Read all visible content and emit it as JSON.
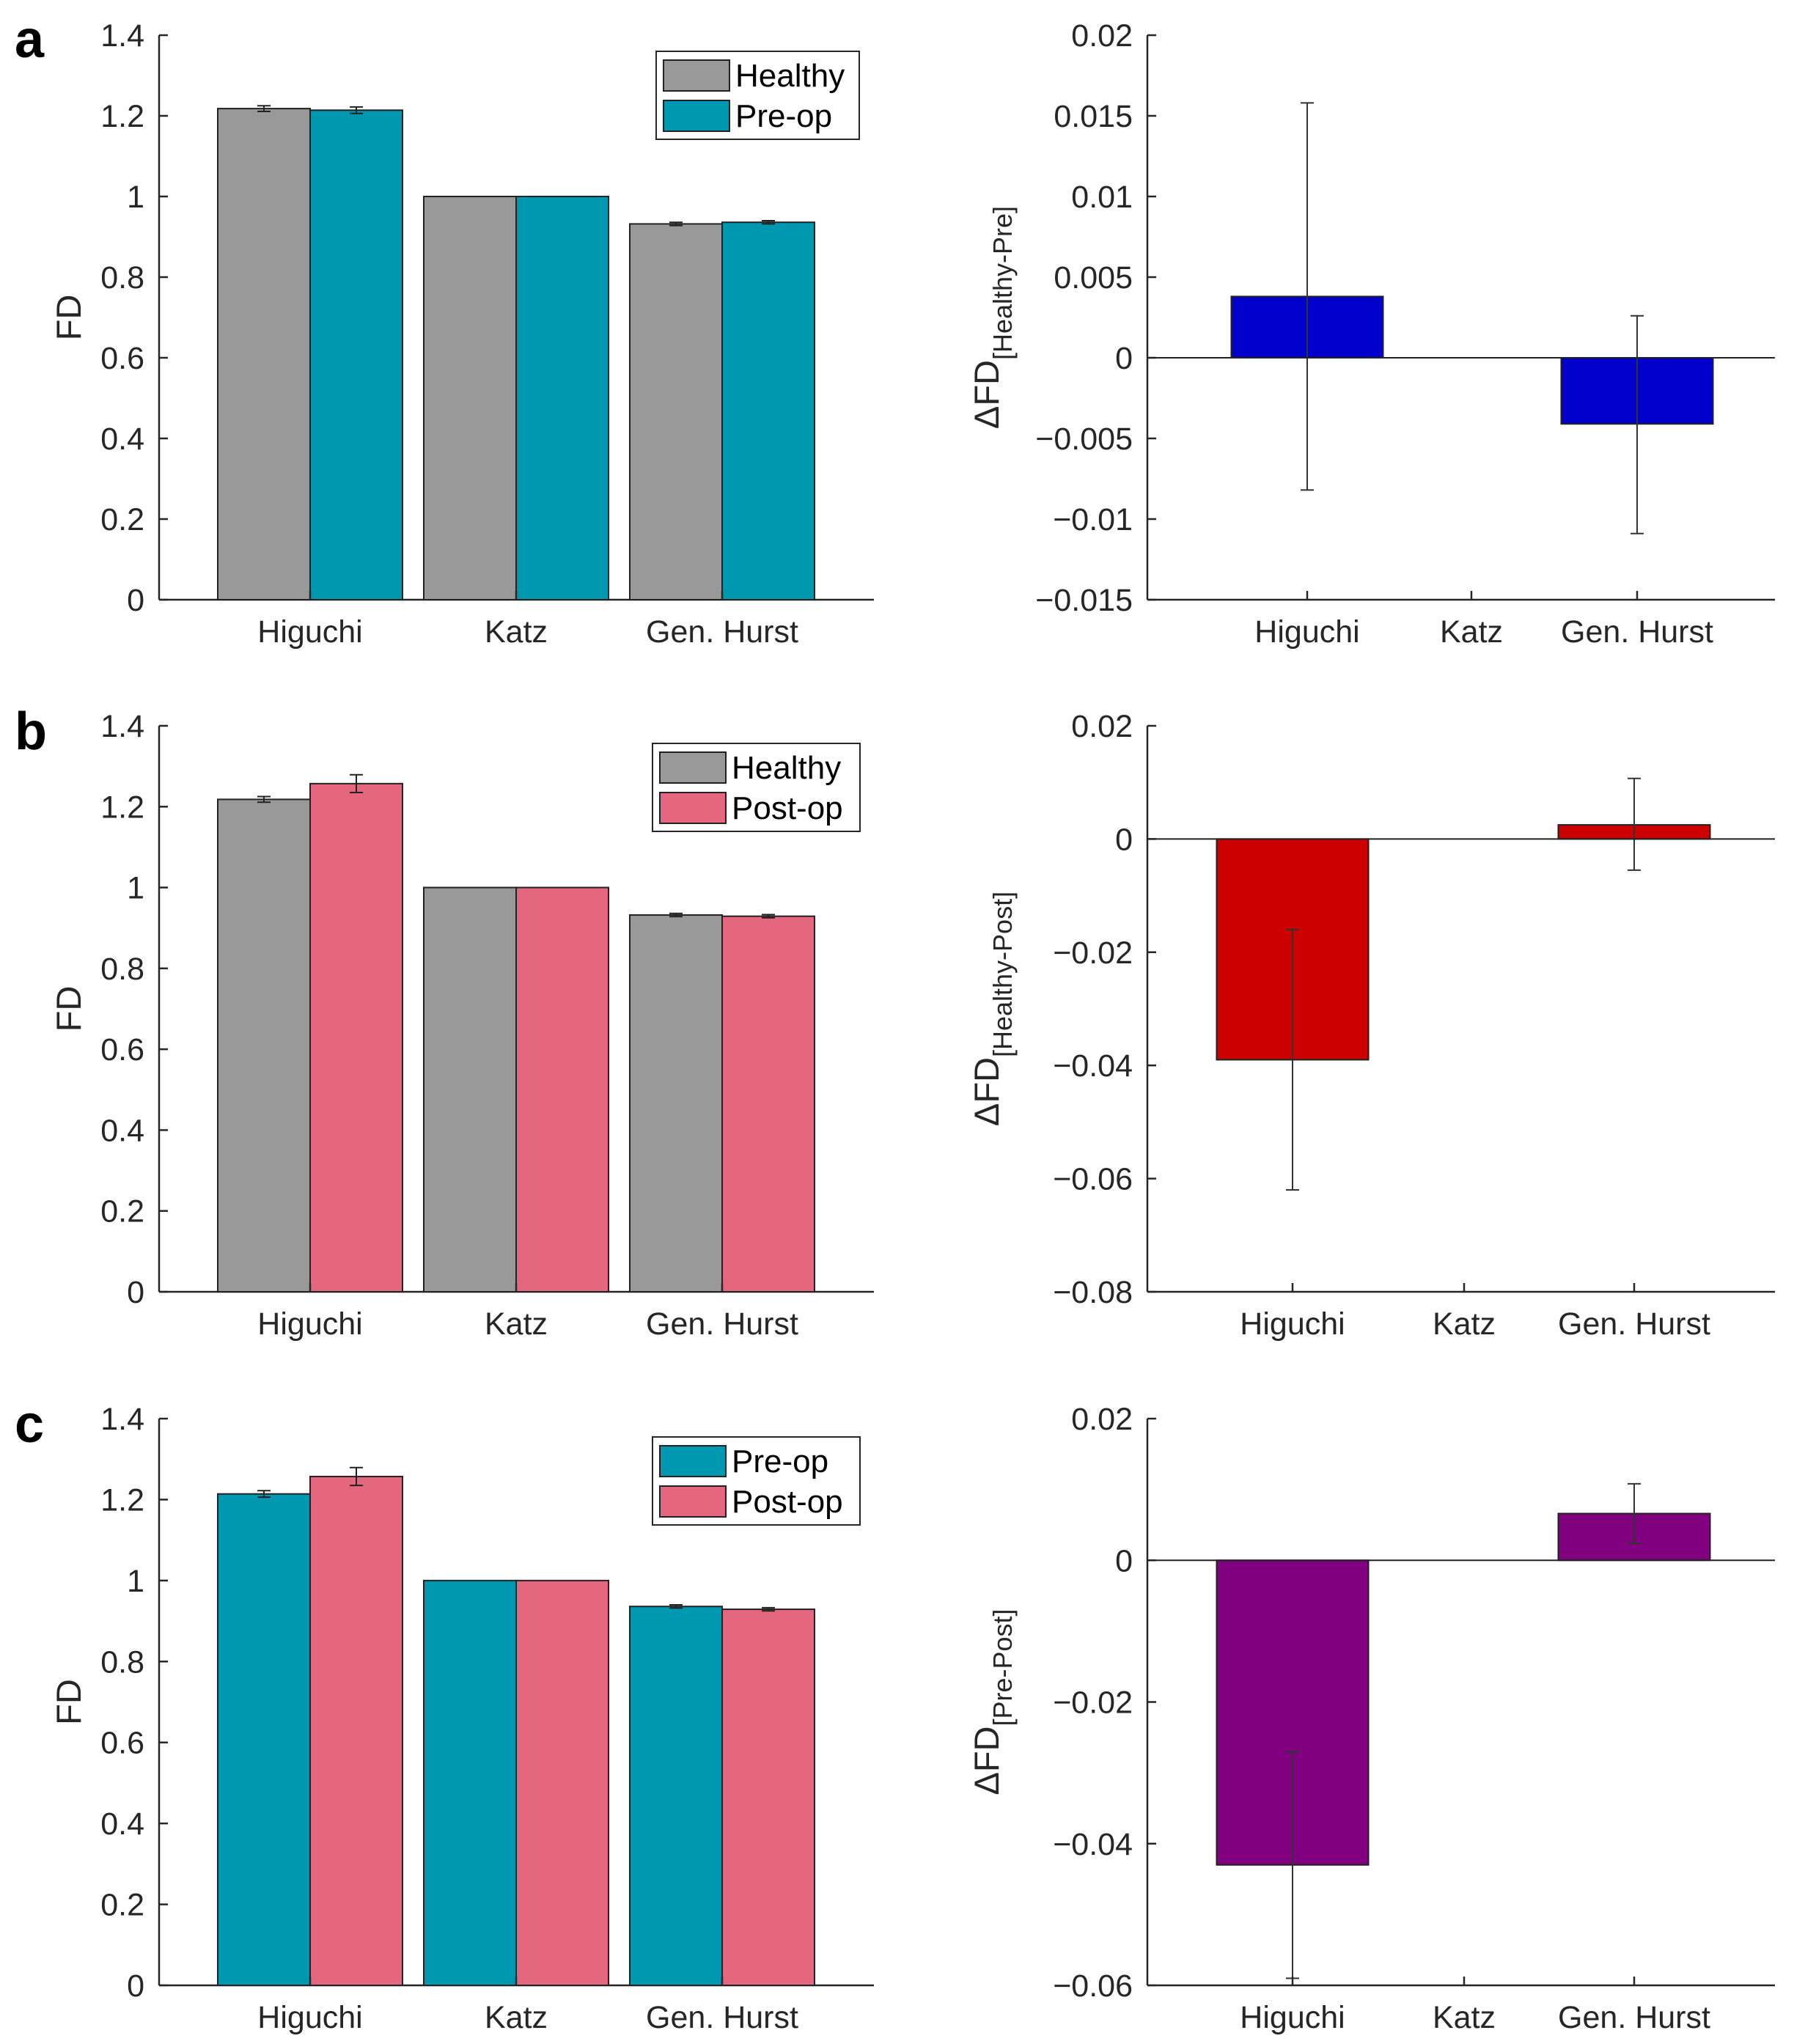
{
  "panels": [
    {
      "letter": "a"
    },
    {
      "letter": "b"
    },
    {
      "letter": "c"
    }
  ],
  "chart_data": [
    {
      "id": "a-left",
      "type": "bar",
      "panel": "a",
      "categories": [
        "Higuchi",
        "Katz",
        "Gen. Hurst"
      ],
      "series": [
        {
          "name": "Healthy",
          "color": "#999999",
          "values": [
            1.218,
            1.0,
            0.932
          ],
          "errors": [
            0.007,
            0.0,
            0.004
          ]
        },
        {
          "name": "Pre-op",
          "color": "#0098B1",
          "values": [
            1.214,
            1.0,
            0.936
          ],
          "errors": [
            0.008,
            0.0,
            0.004
          ]
        }
      ],
      "xlabel": "",
      "ylabel": "FD",
      "ylim": [
        0,
        1.4
      ],
      "yticks": [
        0,
        0.2,
        0.4,
        0.6,
        0.8,
        1.0,
        1.2,
        1.4
      ],
      "ytick_labels": [
        "0",
        "0.2",
        "0.4",
        "0.6",
        "0.8",
        "1",
        "1.2",
        "1.4"
      ],
      "legend": "top-right"
    },
    {
      "id": "a-right",
      "type": "bar",
      "panel": "a",
      "categories": [
        "Higuchi",
        "Katz",
        "Gen. Hurst"
      ],
      "values": [
        0.0038,
        0.0,
        -0.0041
      ],
      "err_low": [
        -0.0082,
        0.0,
        -0.0109
      ],
      "err_high": [
        0.0158,
        0.0,
        0.0026
      ],
      "color": "#0000CC",
      "ylabel_main": "ΔFD",
      "ylabel_sub": "[Healthy-Pre]",
      "ylim": [
        -0.015,
        0.02
      ],
      "yticks": [
        -0.015,
        -0.01,
        -0.005,
        0,
        0.005,
        0.01,
        0.015,
        0.02
      ],
      "ytick_labels": [
        "−0.015",
        "−0.01",
        "−0.005",
        "0",
        "0.005",
        "0.01",
        "0.015",
        "0.02"
      ]
    },
    {
      "id": "b-left",
      "type": "bar",
      "panel": "b",
      "categories": [
        "Higuchi",
        "Katz",
        "Gen. Hurst"
      ],
      "series": [
        {
          "name": "Healthy",
          "color": "#999999",
          "values": [
            1.218,
            1.0,
            0.932
          ],
          "errors": [
            0.007,
            0.0,
            0.004
          ]
        },
        {
          "name": "Post-op",
          "color": "#E5677F",
          "values": [
            1.257,
            1.0,
            0.929
          ],
          "errors": [
            0.022,
            0.0,
            0.004
          ]
        }
      ],
      "xlabel": "",
      "ylabel": "FD",
      "ylim": [
        0,
        1.4
      ],
      "yticks": [
        0,
        0.2,
        0.4,
        0.6,
        0.8,
        1.0,
        1.2,
        1.4
      ],
      "ytick_labels": [
        "0",
        "0.2",
        "0.4",
        "0.6",
        "0.8",
        "1",
        "1.2",
        "1.4"
      ],
      "legend": "top-right"
    },
    {
      "id": "b-right",
      "type": "bar",
      "panel": "b",
      "categories": [
        "Higuchi",
        "Katz",
        "Gen. Hurst"
      ],
      "values": [
        -0.039,
        0.0,
        0.0025
      ],
      "err_low": [
        -0.062,
        0.0,
        -0.0055
      ],
      "err_high": [
        -0.016,
        0.0,
        0.0107
      ],
      "color": "#CC0000",
      "ylabel_main": "ΔFD",
      "ylabel_sub": "[Healthy-Post]",
      "ylim": [
        -0.08,
        0.02
      ],
      "yticks": [
        -0.08,
        -0.06,
        -0.04,
        -0.02,
        0,
        0.02
      ],
      "ytick_labels": [
        "−0.08",
        "−0.06",
        "−0.04",
        "−0.02",
        "0",
        "0.02"
      ]
    },
    {
      "id": "c-left",
      "type": "bar",
      "panel": "c",
      "categories": [
        "Higuchi",
        "Katz",
        "Gen. Hurst"
      ],
      "series": [
        {
          "name": "Pre-op",
          "color": "#0098B1",
          "values": [
            1.214,
            1.0,
            0.936
          ],
          "errors": [
            0.008,
            0.0,
            0.004
          ]
        },
        {
          "name": "Post-op",
          "color": "#E5677F",
          "values": [
            1.257,
            1.0,
            0.929
          ],
          "errors": [
            0.022,
            0.0,
            0.004
          ]
        }
      ],
      "xlabel": "",
      "ylabel": "FD",
      "ylim": [
        0,
        1.4
      ],
      "yticks": [
        0,
        0.2,
        0.4,
        0.6,
        0.8,
        1.0,
        1.2,
        1.4
      ],
      "ytick_labels": [
        "0",
        "0.2",
        "0.4",
        "0.6",
        "0.8",
        "1",
        "1.2",
        "1.4"
      ],
      "legend": "top-right"
    },
    {
      "id": "c-right",
      "type": "bar",
      "panel": "c",
      "categories": [
        "Higuchi",
        "Katz",
        "Gen. Hurst"
      ],
      "values": [
        -0.043,
        0.0,
        0.0066
      ],
      "err_low": [
        -0.059,
        0.0,
        0.0024
      ],
      "err_high": [
        -0.027,
        0.0,
        0.0108
      ],
      "color": "#800080",
      "ylabel_main": "ΔFD",
      "ylabel_sub": "[Pre-Post]",
      "ylim": [
        -0.06,
        0.02
      ],
      "yticks": [
        -0.06,
        -0.04,
        -0.02,
        0,
        0.02
      ],
      "ytick_labels": [
        "−0.06",
        "−0.04",
        "−0.02",
        "0",
        "0.02"
      ]
    }
  ]
}
